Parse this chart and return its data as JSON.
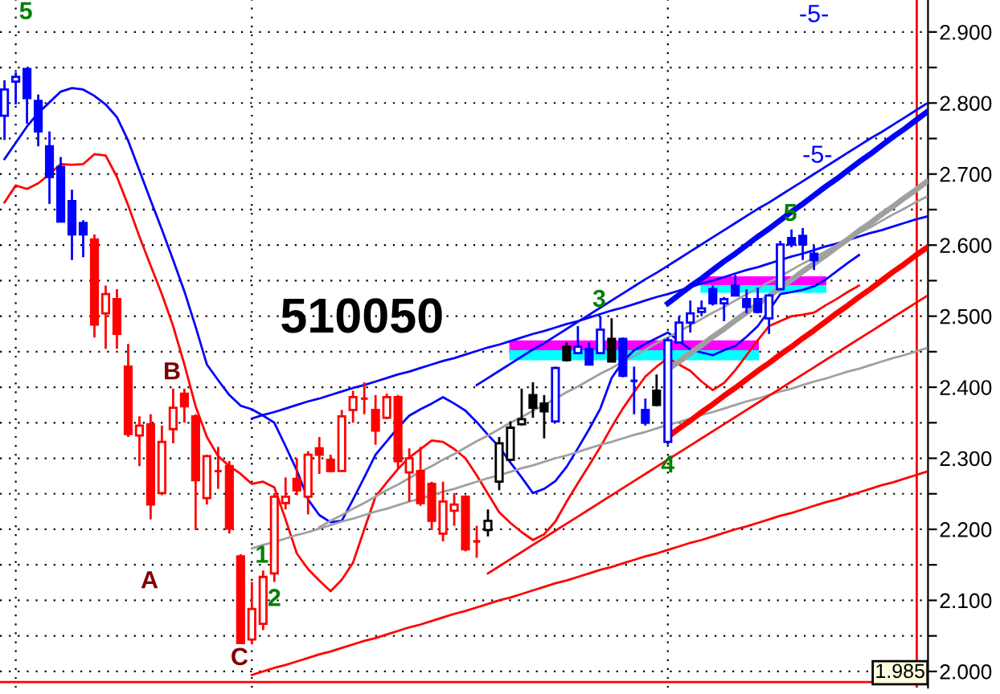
{
  "chart_data": {
    "type": "candlestick",
    "title": "510050",
    "categories": [
      null,
      null,
      null,
      null,
      null,
      null,
      null,
      null,
      null,
      null,
      null,
      null,
      null,
      null,
      null,
      null,
      null,
      null,
      null,
      null,
      null,
      null,
      null,
      null,
      null,
      null,
      null,
      null,
      null,
      null,
      null,
      null,
      null,
      null,
      null,
      null,
      null,
      null,
      null,
      null,
      null,
      null,
      null,
      null,
      null,
      null,
      null,
      null,
      null,
      null,
      null,
      null,
      null,
      null,
      null,
      null,
      null,
      null,
      null,
      null,
      null,
      null,
      null,
      null,
      null,
      null,
      null,
      null,
      null,
      null,
      null,
      null,
      null,
      null,
      null,
      null,
      null,
      null,
      null,
      null,
      null,
      null,
      null
    ],
    "ohlc": [
      [
        2.782,
        2.832,
        2.748,
        2.819
      ],
      [
        2.83,
        2.843,
        2.798,
        2.837
      ],
      [
        2.848,
        2.848,
        2.771,
        2.807
      ],
      [
        2.803,
        2.812,
        2.739,
        2.76
      ],
      [
        2.739,
        2.76,
        2.658,
        2.696
      ],
      [
        2.71,
        2.724,
        2.633,
        2.633
      ],
      [
        2.662,
        2.678,
        2.579,
        2.615
      ],
      [
        2.631,
        2.635,
        2.583,
        2.615
      ],
      [
        2.608,
        2.615,
        2.47,
        2.488
      ],
      [
        2.504,
        2.543,
        2.454,
        2.531
      ],
      [
        2.524,
        2.538,
        2.454,
        2.475
      ],
      [
        2.429,
        2.461,
        2.33,
        2.334
      ],
      [
        2.332,
        2.359,
        2.289,
        2.346
      ],
      [
        2.348,
        2.362,
        2.214,
        2.235
      ],
      [
        2.251,
        2.346,
        2.248,
        2.323
      ],
      [
        2.341,
        2.398,
        2.321,
        2.371
      ],
      [
        2.391,
        2.398,
        2.35,
        2.373
      ],
      [
        2.359,
        2.362,
        2.199,
        2.269
      ],
      [
        2.244,
        2.305,
        2.235,
        2.303
      ],
      [
        2.282,
        2.316,
        2.257,
        2.282
      ],
      [
        2.289,
        2.296,
        2.194,
        2.201
      ],
      [
        2.162,
        2.165,
        2.04,
        2.04
      ],
      [
        2.045,
        2.126,
        2.038,
        2.088
      ],
      [
        2.067,
        2.142,
        2.058,
        2.133
      ],
      [
        2.138,
        2.251,
        2.126,
        2.246
      ],
      [
        2.237,
        2.273,
        2.228,
        2.246
      ],
      [
        2.271,
        2.3,
        2.248,
        2.255
      ],
      [
        2.246,
        2.31,
        2.221,
        2.305
      ],
      [
        2.314,
        2.33,
        2.278,
        2.305
      ],
      [
        2.298,
        2.305,
        2.28,
        2.282
      ],
      [
        2.282,
        2.368,
        2.282,
        2.359
      ],
      [
        2.368,
        2.395,
        2.35,
        2.386
      ],
      [
        2.384,
        2.407,
        2.362,
        2.384
      ],
      [
        2.368,
        2.389,
        2.319,
        2.339
      ],
      [
        2.357,
        2.391,
        2.355,
        2.386
      ],
      [
        2.386,
        2.389,
        2.285,
        2.296
      ],
      [
        2.28,
        2.314,
        2.239,
        2.3
      ],
      [
        2.282,
        2.316,
        2.233,
        2.237
      ],
      [
        2.264,
        2.267,
        2.199,
        2.212
      ],
      [
        2.194,
        2.267,
        2.183,
        2.239
      ],
      [
        2.226,
        2.251,
        2.205,
        2.235
      ],
      [
        2.246,
        2.248,
        2.169,
        2.172
      ],
      [
        2.183,
        2.205,
        2.16,
        2.183
      ],
      [
        2.199,
        2.228,
        2.19,
        2.212
      ],
      [
        2.267,
        2.33,
        2.255,
        2.321
      ],
      [
        2.298,
        2.352,
        2.296,
        2.343
      ],
      [
        2.348,
        2.398,
        2.346,
        2.355
      ],
      [
        2.389,
        2.407,
        2.357,
        2.371
      ],
      [
        2.377,
        2.389,
        2.328,
        2.366
      ],
      [
        2.352,
        2.429,
        2.35,
        2.427
      ],
      [
        2.457,
        2.463,
        2.436,
        2.438
      ],
      [
        2.448,
        2.486,
        2.448,
        2.457
      ],
      [
        2.454,
        2.463,
        2.432,
        2.432
      ],
      [
        2.448,
        2.5,
        2.448,
        2.481
      ],
      [
        2.468,
        2.497,
        2.436,
        2.436
      ],
      [
        2.468,
        2.47,
        2.414,
        2.416
      ],
      [
        2.409,
        2.429,
        2.362,
        2.409
      ],
      [
        2.368,
        2.384,
        2.346,
        2.35
      ],
      [
        2.395,
        2.418,
        2.373,
        2.375
      ],
      [
        2.323,
        2.47,
        2.319,
        2.466
      ],
      [
        2.463,
        2.5,
        2.463,
        2.491
      ],
      [
        2.491,
        2.522,
        2.477,
        2.504
      ],
      [
        2.506,
        2.522,
        2.5,
        2.511
      ],
      [
        2.538,
        2.543,
        2.515,
        2.518
      ],
      [
        2.518,
        2.527,
        2.493,
        2.524
      ],
      [
        2.543,
        2.558,
        2.529,
        2.529
      ],
      [
        2.524,
        2.538,
        2.504,
        2.513
      ],
      [
        2.524,
        2.54,
        2.504,
        2.506
      ],
      [
        2.497,
        2.531,
        2.475,
        2.529
      ],
      [
        2.538,
        2.606,
        2.538,
        2.601
      ],
      [
        2.61,
        2.622,
        2.597,
        2.601
      ],
      [
        2.613,
        2.624,
        2.579,
        2.601
      ],
      [
        2.588,
        2.599,
        2.565,
        2.579
      ],
      null,
      null,
      null,
      null,
      null,
      null,
      null,
      null,
      null,
      null
    ],
    "colors": [
      "#0000ff",
      "#0000ff",
      "#0000ff",
      "#0000ff",
      "#0000ff",
      "#0000ff",
      "#0000ff",
      "#0000ff",
      "#ff0000",
      "#ff0000",
      "#ff0000",
      "#ff0000",
      "#ff0000",
      "#ff0000",
      "#ff0000",
      "#ff0000",
      "#ff0000",
      "#ff0000",
      "#ff0000",
      "#ff0000",
      "#ff0000",
      "#ff0000",
      "#ff0000",
      "#ff0000",
      "#ff0000",
      "#ff0000",
      "#ff0000",
      "#ff0000",
      "#ff0000",
      "#ff0000",
      "#ff0000",
      "#ff0000",
      "#ff0000",
      "#ff0000",
      "#ff0000",
      "#ff0000",
      "#ff0000",
      "#ff0000",
      "#ff0000",
      "#ff0000",
      "#ff0000",
      "#ff0000",
      "#ff0000",
      "#000000",
      "#000000",
      "#000000",
      "#000000",
      "#000000",
      "#000000",
      "#0000ff",
      "#000000",
      "#0000ff",
      "#0000ff",
      "#0000ff",
      "#000000",
      "#0000ff",
      "#0000ff",
      "#0000ff",
      "#000000",
      "#0000ff",
      "#0000ff",
      "#0000ff",
      "#0000ff",
      "#0000ff",
      "#0000ff",
      "#0000ff",
      "#0000ff",
      "#0000ff",
      "#0000ff",
      "#0000ff",
      "#0000ff",
      "#0000ff",
      "#0000ff",
      null,
      null,
      null,
      null,
      null,
      null,
      null,
      null,
      null,
      null
    ],
    "series": [
      {
        "type": "line",
        "color": "#0000ff",
        "values": [
          2.721,
          2.744,
          2.767,
          2.786,
          2.801,
          2.816,
          2.821,
          2.819,
          2.81,
          2.798,
          2.78,
          2.747,
          2.705,
          2.663,
          2.622,
          2.579,
          2.535,
          2.485,
          2.432,
          2.41,
          2.389,
          2.374,
          2.369,
          2.36,
          2.35,
          2.317,
          2.283,
          2.242,
          2.22,
          2.21,
          2.212,
          2.242,
          2.273,
          2.305,
          2.324,
          2.343,
          2.36,
          2.369,
          2.377,
          2.386,
          2.377,
          2.367,
          2.351,
          2.333,
          2.316,
          2.294,
          2.273,
          2.251,
          2.257,
          2.268,
          2.288,
          2.314,
          2.341,
          2.37,
          2.413,
          2.436,
          2.452,
          2.461,
          2.469,
          2.477,
          2.465,
          2.453,
          2.449,
          2.445,
          2.452,
          2.458,
          2.471,
          2.486,
          2.508,
          2.531,
          2.534,
          2.537,
          2.542,
          2.551,
          2.563,
          2.575,
          2.586,
          null,
          null,
          null,
          null,
          null,
          null
        ]
      },
      {
        "type": "line",
        "color": "#ff0000",
        "values": [
          2.66,
          2.684,
          2.679,
          2.687,
          2.7,
          2.714,
          2.713,
          2.714,
          2.728,
          2.726,
          2.696,
          2.656,
          2.612,
          2.571,
          2.531,
          2.486,
          2.432,
          2.373,
          2.33,
          2.303,
          2.289,
          2.278,
          2.264,
          2.267,
          2.259,
          2.214,
          2.166,
          2.144,
          2.128,
          2.113,
          2.129,
          2.153,
          2.2,
          2.246,
          2.266,
          2.285,
          2.301,
          2.313,
          2.325,
          2.323,
          2.313,
          2.3,
          2.276,
          2.25,
          2.224,
          2.209,
          2.196,
          2.185,
          2.193,
          2.211,
          2.239,
          2.265,
          2.29,
          2.316,
          2.344,
          2.37,
          2.393,
          2.415,
          2.429,
          2.441,
          2.432,
          2.423,
          2.408,
          2.396,
          2.406,
          2.424,
          2.445,
          2.466,
          2.486,
          2.493,
          2.5,
          2.502,
          2.505,
          2.515,
          2.524,
          2.534,
          2.543,
          null,
          null,
          null,
          null,
          null,
          null
        ]
      },
      {
        "type": "line",
        "color": "#0000ff",
        "values": [
          null,
          null,
          null,
          null,
          null,
          null,
          null,
          null,
          null,
          null,
          null,
          null,
          null,
          null,
          null,
          null,
          null,
          null,
          null,
          null,
          null,
          null,
          2.356,
          2.361,
          2.365,
          2.37,
          2.375,
          2.38,
          2.384,
          2.389,
          2.394,
          2.399,
          2.403,
          2.408,
          2.413,
          2.418,
          2.422,
          2.427,
          2.432,
          2.437,
          2.441,
          2.446,
          2.451,
          2.456,
          2.46,
          2.465,
          2.47,
          2.475,
          2.479,
          2.484,
          2.489,
          2.493,
          2.498,
          2.503,
          2.508,
          2.512,
          2.517,
          2.522,
          2.527,
          2.531,
          2.536,
          2.541,
          2.546,
          2.55,
          2.555,
          2.56,
          2.565,
          2.569,
          2.574,
          2.579,
          2.584,
          2.588,
          2.593,
          2.598,
          2.602,
          2.607,
          2.612,
          2.617,
          2.621,
          2.626,
          2.631,
          2.636,
          2.64
        ]
      },
      {
        "type": "line",
        "color": "#0000ff",
        "values": [
          null,
          null,
          null,
          null,
          null,
          null,
          null,
          null,
          null,
          null,
          null,
          null,
          null,
          null,
          null,
          null,
          null,
          null,
          null,
          null,
          null,
          null,
          null,
          null,
          null,
          null,
          null,
          null,
          null,
          null,
          null,
          null,
          null,
          null,
          null,
          null,
          null,
          null,
          null,
          null,
          null,
          null,
          2.403,
          2.413,
          2.423,
          2.433,
          2.443,
          2.453,
          2.462,
          2.472,
          2.482,
          2.492,
          2.502,
          2.512,
          2.522,
          2.532,
          2.542,
          2.552,
          2.561,
          2.571,
          2.581,
          2.591,
          2.601,
          2.611,
          2.621,
          2.631,
          2.641,
          2.651,
          2.66,
          2.67,
          2.68,
          2.69,
          2.7,
          2.71,
          2.72,
          2.73,
          2.74,
          2.75,
          2.759,
          2.769,
          2.779,
          2.789,
          2.799
        ]
      },
      {
        "type": "line",
        "color": "#0000ff",
        "values": [
          null,
          null,
          null,
          null,
          null,
          null,
          null,
          null,
          null,
          null,
          null,
          null,
          null,
          null,
          null,
          null,
          null,
          null,
          null,
          null,
          null,
          null,
          null,
          null,
          null,
          null,
          null,
          null,
          null,
          null,
          null,
          null,
          null,
          null,
          null,
          null,
          null,
          null,
          null,
          null,
          null,
          null,
          null,
          null,
          null,
          null,
          null,
          null,
          null,
          null,
          null,
          null,
          null,
          null,
          null,
          null,
          null,
          null,
          null,
          2.518,
          2.53,
          2.542,
          2.553,
          2.565,
          2.577,
          2.588,
          2.6,
          2.612,
          2.623,
          2.635,
          2.647,
          2.658,
          2.67,
          2.682,
          2.693,
          2.705,
          2.717,
          2.728,
          2.74,
          2.752,
          2.763,
          2.775,
          2.787
        ]
      },
      {
        "type": "line",
        "color": "#a0a0a0",
        "values": [
          null,
          null,
          null,
          null,
          null,
          null,
          null,
          null,
          null,
          null,
          null,
          null,
          null,
          null,
          null,
          null,
          null,
          null,
          null,
          null,
          null,
          null,
          null,
          null,
          null,
          null,
          null,
          null,
          null,
          null,
          null,
          null,
          null,
          null,
          null,
          null,
          null,
          null,
          null,
          null,
          null,
          null,
          null,
          null,
          null,
          null,
          null,
          null,
          null,
          null,
          null,
          null,
          null,
          null,
          null,
          null,
          null,
          null,
          null,
          2.425,
          2.436,
          2.448,
          2.459,
          2.471,
          2.482,
          2.494,
          2.505,
          2.517,
          2.528,
          2.54,
          2.551,
          2.563,
          2.574,
          2.585,
          2.597,
          2.608,
          2.62,
          2.631,
          2.643,
          2.654,
          2.666,
          2.677,
          2.689
        ]
      },
      {
        "type": "line",
        "color": "#a0a0a0",
        "values": [
          null,
          null,
          null,
          null,
          null,
          null,
          null,
          null,
          null,
          null,
          null,
          null,
          null,
          null,
          null,
          null,
          null,
          null,
          null,
          null,
          null,
          null,
          null,
          null,
          null,
          null,
          null,
          null,
          2.203,
          2.212,
          2.22,
          2.229,
          2.237,
          2.246,
          2.255,
          2.263,
          2.272,
          2.281,
          2.289,
          2.298,
          2.306,
          2.315,
          2.324,
          2.332,
          2.341,
          2.35,
          2.358,
          2.367,
          2.375,
          2.384,
          2.393,
          2.401,
          2.41,
          2.419,
          2.427,
          2.436,
          2.444,
          2.453,
          2.462,
          2.47,
          2.479,
          2.487,
          2.496,
          2.505,
          2.513,
          2.522,
          2.531,
          2.539,
          2.548,
          2.556,
          2.565,
          2.574,
          2.582,
          2.591,
          2.6,
          2.608,
          2.617,
          2.625,
          2.634,
          2.643,
          2.651,
          2.66,
          2.668
        ]
      },
      {
        "type": "line",
        "color": "#a0a0a0",
        "values": [
          null,
          null,
          null,
          null,
          null,
          null,
          null,
          null,
          null,
          null,
          null,
          null,
          null,
          null,
          null,
          null,
          null,
          null,
          null,
          null,
          null,
          null,
          2.173,
          2.178,
          2.182,
          2.187,
          2.192,
          2.196,
          2.201,
          2.206,
          2.211,
          2.215,
          2.22,
          2.225,
          2.229,
          2.234,
          2.239,
          2.243,
          2.248,
          2.253,
          2.257,
          2.262,
          2.267,
          2.272,
          2.276,
          2.281,
          2.286,
          2.29,
          2.295,
          2.3,
          2.304,
          2.309,
          2.314,
          2.319,
          2.323,
          2.328,
          2.333,
          2.337,
          2.342,
          2.347,
          2.351,
          2.356,
          2.361,
          2.365,
          2.37,
          2.375,
          2.38,
          2.384,
          2.389,
          2.394,
          2.398,
          2.403,
          2.408,
          2.412,
          2.417,
          2.422,
          2.426,
          2.431,
          2.436,
          2.441,
          2.445,
          2.45,
          2.455
        ]
      },
      {
        "type": "line",
        "color": "#ff0000",
        "values": [
          null,
          null,
          null,
          null,
          null,
          null,
          null,
          null,
          null,
          null,
          null,
          null,
          null,
          null,
          null,
          null,
          null,
          null,
          null,
          null,
          null,
          null,
          null,
          null,
          null,
          null,
          null,
          null,
          null,
          null,
          null,
          null,
          null,
          null,
          null,
          null,
          null,
          null,
          null,
          null,
          null,
          null,
          null,
          null,
          null,
          null,
          null,
          null,
          null,
          null,
          null,
          null,
          null,
          null,
          null,
          null,
          null,
          null,
          null,
          2.33,
          2.342,
          2.353,
          2.365,
          2.376,
          2.388,
          2.399,
          2.411,
          2.423,
          2.434,
          2.446,
          2.457,
          2.469,
          2.48,
          2.492,
          2.504,
          2.515,
          2.527,
          2.538,
          2.55,
          2.562,
          2.573,
          2.585,
          2.596
        ]
      },
      {
        "type": "line",
        "color": "#ff0000",
        "values": [
          null,
          null,
          null,
          null,
          null,
          null,
          null,
          null,
          null,
          null,
          null,
          null,
          null,
          null,
          null,
          null,
          null,
          null,
          null,
          null,
          null,
          null,
          null,
          null,
          null,
          null,
          null,
          null,
          null,
          null,
          null,
          null,
          null,
          null,
          null,
          null,
          null,
          null,
          null,
          null,
          null,
          null,
          null,
          2.138,
          2.148,
          2.158,
          2.168,
          2.178,
          2.188,
          2.198,
          2.208,
          2.218,
          2.228,
          2.238,
          2.248,
          2.258,
          2.268,
          2.278,
          2.288,
          2.298,
          2.308,
          2.318,
          2.328,
          2.338,
          2.348,
          2.358,
          2.368,
          2.378,
          2.388,
          2.398,
          2.408,
          2.418,
          2.428,
          2.438,
          2.448,
          2.458,
          2.468,
          2.478,
          2.488,
          2.498,
          2.508,
          2.518,
          2.528
        ]
      },
      {
        "type": "line",
        "color": "#ff0000",
        "values": [
          null,
          null,
          null,
          null,
          null,
          null,
          null,
          null,
          null,
          null,
          null,
          null,
          null,
          null,
          null,
          null,
          null,
          null,
          null,
          null,
          null,
          null,
          1.995,
          2.0,
          2.005,
          2.009,
          2.014,
          2.019,
          2.024,
          2.028,
          2.033,
          2.038,
          2.043,
          2.047,
          2.052,
          2.057,
          2.062,
          2.066,
          2.071,
          2.076,
          2.081,
          2.085,
          2.09,
          2.095,
          2.1,
          2.104,
          2.109,
          2.114,
          2.119,
          2.124,
          2.128,
          2.133,
          2.138,
          2.143,
          2.147,
          2.152,
          2.157,
          2.162,
          2.166,
          2.171,
          2.176,
          2.181,
          2.185,
          2.19,
          2.195,
          2.2,
          2.204,
          2.209,
          2.214,
          2.219,
          2.223,
          2.228,
          2.233,
          2.238,
          2.242,
          2.247,
          2.252,
          2.257,
          2.262,
          2.266,
          2.271,
          2.276,
          2.281
        ]
      }
    ],
    "annotations": [
      "5",
      "3",
      "4",
      "5",
      "1",
      "2",
      "A",
      "B",
      "C",
      "-5-",
      "-5-"
    ],
    "bands": [
      {
        "axis": "y",
        "from": 2.452,
        "to": 2.466,
        "label": null,
        "color": "#ff00ff"
      },
      {
        "axis": "y",
        "from": 2.438,
        "to": 2.452,
        "label": null,
        "color": "#00ffff"
      },
      {
        "axis": "y",
        "from": 2.543,
        "to": 2.556,
        "label": null,
        "color": "#ff00ff"
      },
      {
        "axis": "y",
        "from": 2.533,
        "to": 2.543,
        "label": null,
        "color": "#00ffff"
      }
    ],
    "ref_lines": [
      {
        "axis": "y",
        "value": 1.985,
        "label": "1.985",
        "color": "#ff0000"
      }
    ],
    "ylim": [
      1.977,
      2.945
    ],
    "yticks": [
      {
        "value": 2.0,
        "label": "2.000"
      },
      {
        "value": 2.05,
        "label": null
      },
      {
        "value": 2.1,
        "label": "2.100"
      },
      {
        "value": 2.15,
        "label": null
      },
      {
        "value": 2.2,
        "label": "2.200"
      },
      {
        "value": 2.25,
        "label": null
      },
      {
        "value": 2.3,
        "label": "2.300"
      },
      {
        "value": 2.35,
        "label": null
      },
      {
        "value": 2.4,
        "label": "2.400"
      },
      {
        "value": 2.45,
        "label": null
      },
      {
        "value": 2.5,
        "label": "2.500"
      },
      {
        "value": 2.55,
        "label": null
      },
      {
        "value": 2.6,
        "label": "2.600"
      },
      {
        "value": 2.65,
        "label": null
      },
      {
        "value": 2.7,
        "label": "2.700"
      },
      {
        "value": 2.75,
        "label": null
      },
      {
        "value": 2.8,
        "label": "2.800"
      },
      {
        "value": 2.85,
        "label": null
      },
      {
        "value": 2.9,
        "label": "2.900"
      }
    ],
    "tick_labels": "y",
    "grid": true,
    "legend": false
  }
}
